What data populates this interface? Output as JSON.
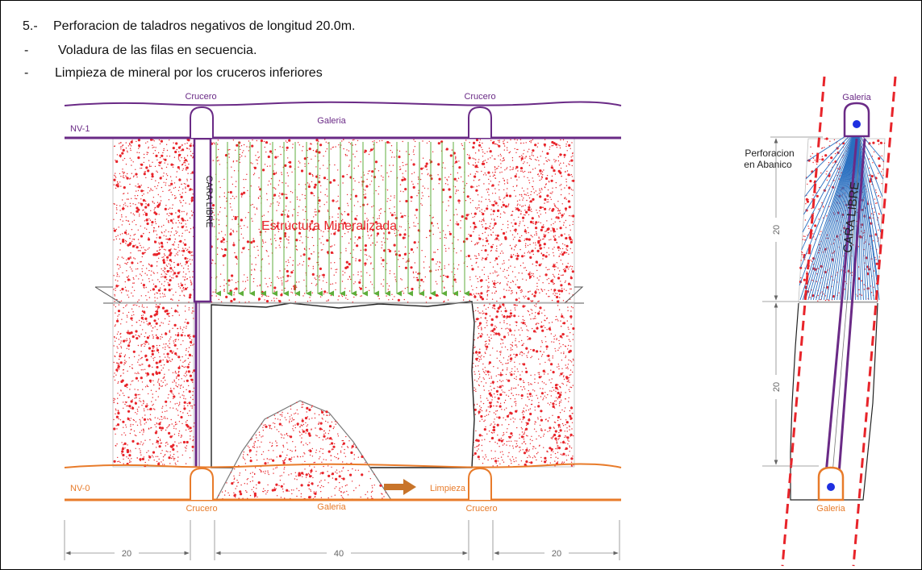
{
  "header": {
    "line1_marker": "5.-",
    "line1": "Perforacion de taladros negativos de longitud 20.0m.",
    "line2_marker": "-",
    "line2": "Voladura de las filas en secuencia.",
    "line3_marker": "-",
    "line3": "Limpieza de mineral por los cruceros inferiores"
  },
  "section": {
    "upper_level": "NV-1",
    "lower_level": "NV-0",
    "crosscut_top_left": "Crucero",
    "crosscut_top_right": "Crucero",
    "gallery_top": "Galeria",
    "crosscut_bottom_left": "Crucero",
    "crosscut_bottom_right": "Crucero",
    "gallery_bottom": "Galeria",
    "free_face": "CARA LIBRE",
    "ore_body": "Estructura Mineralizada",
    "mucking": "Limpieza",
    "dim_left": "20",
    "dim_center": "40",
    "dim_right": "20"
  },
  "profile": {
    "gallery_top": "Galeria",
    "gallery_bottom": "Galeria",
    "fan_drilling_line1": "Perforacion",
    "fan_drilling_line2": "en Abanico",
    "free_face": "CARA LIBRE",
    "dim_upper": "20",
    "dim_lower": "20"
  },
  "colors": {
    "upper_level": "#6a2a86",
    "lower_level": "#e87b2a",
    "ore_speckle": "#e8242a",
    "drill_holes": "#5fae3c",
    "fan_holes": "#2a6fc0",
    "fault_line": "#e8242a",
    "blast_hole": "#1e2fe0"
  }
}
